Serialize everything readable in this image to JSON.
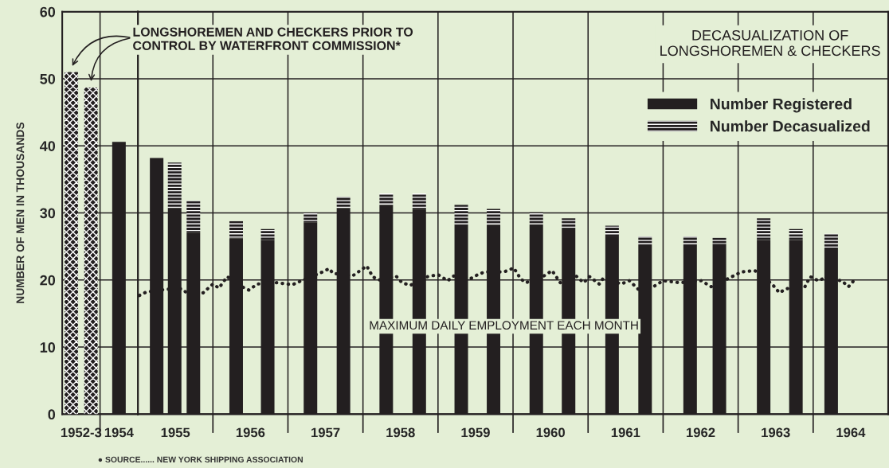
{
  "chart_data": [
    {
      "type": "bar",
      "ylabel": "NUMBER OF MEN IN THOUSANDS",
      "grid": true,
      "categories": [
        "1952-3",
        "1954"
      ],
      "series": [
        {
          "color": "#231f20",
          "values": [
            51,
            null
          ]
        },
        {
          "color": "#231f20",
          "values": [
            48.7,
            null
          ]
        },
        {
          "color": "#231f20",
          "values": [
            null,
            40.6
          ]
        }
      ],
      "ylim": [
        0,
        60
      ],
      "yticks": [
        0,
        10,
        20,
        30,
        40,
        50,
        60
      ],
      "annotations": [
        "LONGSHOREMEN AND CHECKERS PRIOR TO\nCONTROL BY WATERFRONT COMMISSION*",
        "● SOURCE...... NEW YORK SHIPPING ASSOCIATION"
      ]
    },
    {
      "type": "bar",
      "title": "DECASUALIZATION OF\nLONGSHOREMEN & CHECKERS",
      "stacked": true,
      "grid": true,
      "legend": "top right",
      "tick_labels": "x",
      "x": [
        1955.25,
        1955.49,
        1955.74,
        1956.31,
        1956.73,
        1957.3,
        1957.74,
        1958.31,
        1958.75,
        1959.31,
        1959.74,
        1960.31,
        1960.74,
        1961.32,
        1961.76,
        1962.36,
        1962.75,
        1963.34,
        1963.77,
        1964.24
      ],
      "series": [
        {
          "name": "Number Registered",
          "color": "#231f20",
          "values": [
            38.2,
            30.7,
            27.0,
            26.2,
            26.0,
            28.6,
            30.7,
            31.2,
            30.6,
            28.3,
            28.2,
            28.3,
            27.7,
            26.5,
            25.2,
            25.2,
            25.4,
            26.0,
            26.0,
            24.6
          ]
        },
        {
          "name": "Number Decasualized",
          "color": "#231f20",
          "values": [
            null,
            6.8,
            4.8,
            2.6,
            1.6,
            1.4,
            1.7,
            1.7,
            2.3,
            2.9,
            2.4,
            1.8,
            1.5,
            1.6,
            1.3,
            1.3,
            0.9,
            3.2,
            1.6,
            2.3
          ]
        },
        {
          "type": "line",
          "color": "#231f20",
          "line_style": "dotted",
          "x": [
            1955.02,
            1955.11,
            1955.36,
            1955.58,
            1955.64,
            1955.87,
            1956.0,
            1956.08,
            1956.19,
            1956.42,
            1956.48,
            1956.59,
            1956.85,
            1957.06,
            1957.2,
            1957.44,
            1957.55,
            1957.6,
            1957.86,
            1958.05,
            1958.13,
            1958.21,
            1958.44,
            1958.52,
            1958.63,
            1958.86,
            1959.0,
            1959.13,
            1959.21,
            1959.43,
            1959.53,
            1959.62,
            1959.88,
            1960.01,
            1960.1,
            1960.17,
            1960.41,
            1960.52,
            1960.63,
            1960.84,
            1960.94,
            1961.02,
            1961.15,
            1961.21,
            1961.44,
            1961.55,
            1961.68,
            1961.87,
            1962.0,
            1962.22,
            1962.51,
            1962.64,
            1962.9,
            1963.04,
            1963.22,
            1963.27,
            1963.46,
            1963.55,
            1963.64,
            1963.89,
            1963.96,
            1964.07,
            1964.13,
            1964.38,
            1964.47,
            1964.54
          ],
          "values": [
            17.7,
            18.2,
            18.6,
            18.7,
            18.2,
            18.1,
            19.4,
            18.8,
            20.5,
            18.8,
            18.5,
            19.4,
            19.6,
            19.3,
            20.0,
            21.1,
            21.7,
            21.0,
            20.6,
            22.1,
            20.5,
            20.0,
            20.6,
            19.6,
            19.2,
            20.5,
            20.8,
            19.9,
            20.6,
            20.2,
            20.8,
            21.2,
            21.2,
            21.8,
            20.2,
            19.6,
            20.6,
            21.4,
            19.6,
            20.6,
            19.6,
            20.5,
            19.4,
            20.4,
            19.4,
            19.9,
            18.5,
            19.0,
            19.9,
            19.6,
            19.9,
            19.0,
            20.4,
            21.2,
            21.4,
            21.1,
            19.3,
            18.1,
            18.7,
            19.0,
            20.5,
            19.9,
            20.2,
            19.9,
            19.0,
            19.9
          ]
        }
      ],
      "ylim": [
        0,
        60
      ],
      "yticks": [
        0,
        10,
        20,
        30,
        40,
        50,
        60
      ],
      "annotations": [
        "MAXIMUM DAILY EMPLOYMENT EACH MONTH"
      ],
      "xlim": [
        1955,
        1965
      ],
      "xticks": [
        {
          "value": 1955.5,
          "label": "1955"
        },
        {
          "value": 1956,
          "label": null
        },
        {
          "value": 1956.5,
          "label": "1956"
        },
        {
          "value": 1957,
          "label": null
        },
        {
          "value": 1957.5,
          "label": "1957"
        },
        {
          "value": 1958,
          "label": null
        },
        {
          "value": 1958.5,
          "label": "1958"
        },
        {
          "value": 1959,
          "label": null
        },
        {
          "value": 1959.5,
          "label": "1959"
        },
        {
          "value": 1960,
          "label": null
        },
        {
          "value": 1960.5,
          "label": "1960"
        },
        {
          "value": 1961,
          "label": null
        },
        {
          "value": 1961.5,
          "label": "1961"
        },
        {
          "value": 1962,
          "label": null
        },
        {
          "value": 1962.5,
          "label": "1962"
        },
        {
          "value": 1963,
          "label": null
        },
        {
          "value": 1963.5,
          "label": "1963"
        },
        {
          "value": 1964,
          "label": null
        },
        {
          "value": 1964.5,
          "label": "1964"
        }
      ]
    }
  ]
}
